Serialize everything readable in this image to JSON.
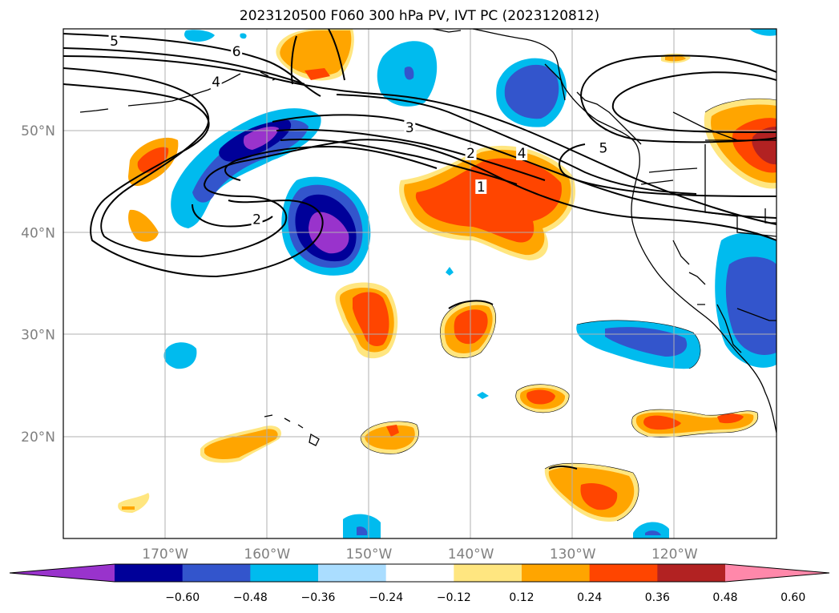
{
  "title": "2023120500 F060 300 hPa PV, IVT PC (2023120812)",
  "map": {
    "lon_range": [
      -180,
      -110
    ],
    "lat_range": [
      10,
      60
    ],
    "lat_ticks": [
      {
        "lat": 50,
        "label": "50°N"
      },
      {
        "lat": 40,
        "label": "40°N"
      },
      {
        "lat": 30,
        "label": "30°N"
      },
      {
        "lat": 20,
        "label": "20°N"
      }
    ],
    "lon_ticks": [
      {
        "lon": -170,
        "label": "170°W"
      },
      {
        "lon": -160,
        "label": "160°W"
      },
      {
        "lon": -150,
        "label": "150°W"
      },
      {
        "lon": -140,
        "label": "140°W"
      },
      {
        "lon": -130,
        "label": "130°W"
      },
      {
        "lon": -120,
        "label": "120°W"
      }
    ],
    "gridlines": true,
    "tick_label_color": "#808080",
    "contour_labels": [
      {
        "text": "5",
        "lon": -175,
        "lat": 58.5
      },
      {
        "text": "6",
        "lon": -163,
        "lat": 57.5
      },
      {
        "text": "4",
        "lon": -165,
        "lat": 54.5
      },
      {
        "text": "3",
        "lon": -146,
        "lat": 50.0
      },
      {
        "text": "2",
        "lon": -140,
        "lat": 47.5
      },
      {
        "text": "4",
        "lon": -135,
        "lat": 47.5
      },
      {
        "text": "1",
        "lon": -139,
        "lat": 44.2
      },
      {
        "text": "5",
        "lon": -127,
        "lat": 48.0
      },
      {
        "text": "2",
        "lon": -161,
        "lat": 41.0
      }
    ]
  },
  "colorbar": {
    "ticks": [
      "−0.60",
      "−0.48",
      "−0.36",
      "−0.24",
      "−0.12",
      "0.12",
      "0.24",
      "0.36",
      "0.48",
      "0.60"
    ],
    "colors": [
      "#9933cc",
      "#000099",
      "#3355cc",
      "#00bbee",
      "#aaddff",
      "#ffffff",
      "#ffe680",
      "#ffa500",
      "#ff4500",
      "#b22222",
      "#ff88aa"
    ]
  }
}
